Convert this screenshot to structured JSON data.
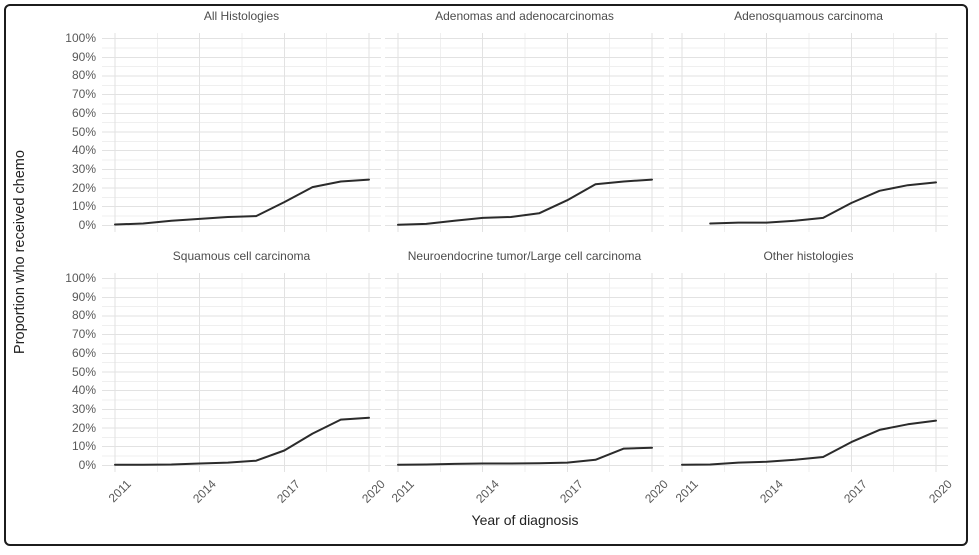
{
  "figure": {
    "y_axis_title": "Proportion who received chemo",
    "x_axis_title": "Year of diagnosis"
  },
  "chart_data": {
    "type": "line",
    "facet_layout": "2 rows x 3 columns, shared axes",
    "xlabel": "Year of diagnosis",
    "ylabel": "Proportion who received chemo",
    "xlim": [
      2011,
      2020
    ],
    "ylim": [
      0,
      100
    ],
    "x_tick_labels": [
      "2011",
      "2014",
      "2017",
      "2020"
    ],
    "x_tick_values": [
      2011,
      2014,
      2017,
      2020
    ],
    "x_minor_gridlines": [
      2012.5,
      2015.5,
      2018.5
    ],
    "y_tick_labels": [
      "0%",
      "10%",
      "20%",
      "30%",
      "40%",
      "50%",
      "60%",
      "70%",
      "80%",
      "90%",
      "100%"
    ],
    "y_tick_values": [
      0,
      10,
      20,
      30,
      40,
      50,
      60,
      70,
      80,
      90,
      100
    ],
    "grid": "major and minor gridlines, light gray, no axis lines, white panel background",
    "legend": "none",
    "line_color": "#2b2b2b",
    "panels": [
      {
        "title": "All Histologies",
        "x": [
          2011,
          2012,
          2013,
          2014,
          2015,
          2016,
          2017,
          2018,
          2019,
          2020
        ],
        "values": [
          0.5,
          1,
          2.5,
          3.5,
          4.5,
          5,
          12.5,
          20.5,
          23.5,
          24.5
        ]
      },
      {
        "title": "Adenomas and adenocarcinomas",
        "x": [
          2011,
          2012,
          2013,
          2014,
          2015,
          2016,
          2017,
          2018,
          2019,
          2020
        ],
        "values": [
          0.3,
          0.8,
          2.5,
          4,
          4.5,
          6.5,
          13.5,
          22,
          23.5,
          24.5
        ]
      },
      {
        "title": "Adenosquamous carcinoma",
        "x": [
          2012,
          2013,
          2014,
          2015,
          2016,
          2017,
          2018,
          2019,
          2020
        ],
        "values": [
          1,
          1.5,
          1.5,
          2.5,
          4,
          12,
          18.5,
          21.5,
          23
        ]
      },
      {
        "title": "Squamous cell carcinoma",
        "x": [
          2011,
          2012,
          2013,
          2014,
          2015,
          2016,
          2017,
          2018,
          2019,
          2020
        ],
        "values": [
          0.3,
          0.3,
          0.5,
          1,
          1.5,
          2.5,
          8,
          17,
          24.5,
          25.5
        ]
      },
      {
        "title": "Neuroendocrine tumor/Large cell carcinoma",
        "x": [
          2011,
          2012,
          2013,
          2014,
          2015,
          2016,
          2017,
          2018,
          2019,
          2020
        ],
        "values": [
          0.3,
          0.5,
          0.8,
          1,
          1,
          1.2,
          1.5,
          3,
          9,
          9.5
        ]
      },
      {
        "title": "Other histologies",
        "x": [
          2011,
          2012,
          2013,
          2014,
          2015,
          2016,
          2017,
          2018,
          2019,
          2020
        ],
        "values": [
          0.3,
          0.5,
          1.5,
          2,
          3,
          4.5,
          12.5,
          19,
          22,
          24
        ]
      }
    ]
  },
  "colors": {
    "background": "#ffffff",
    "border": "#1c1c1c",
    "line": "#2b2b2b",
    "grid_major": "#e2e2e2",
    "grid_minor": "#efefef",
    "facet_title": "#4d4d4d",
    "tick_label": "#595959",
    "axis_title": "#222222"
  }
}
